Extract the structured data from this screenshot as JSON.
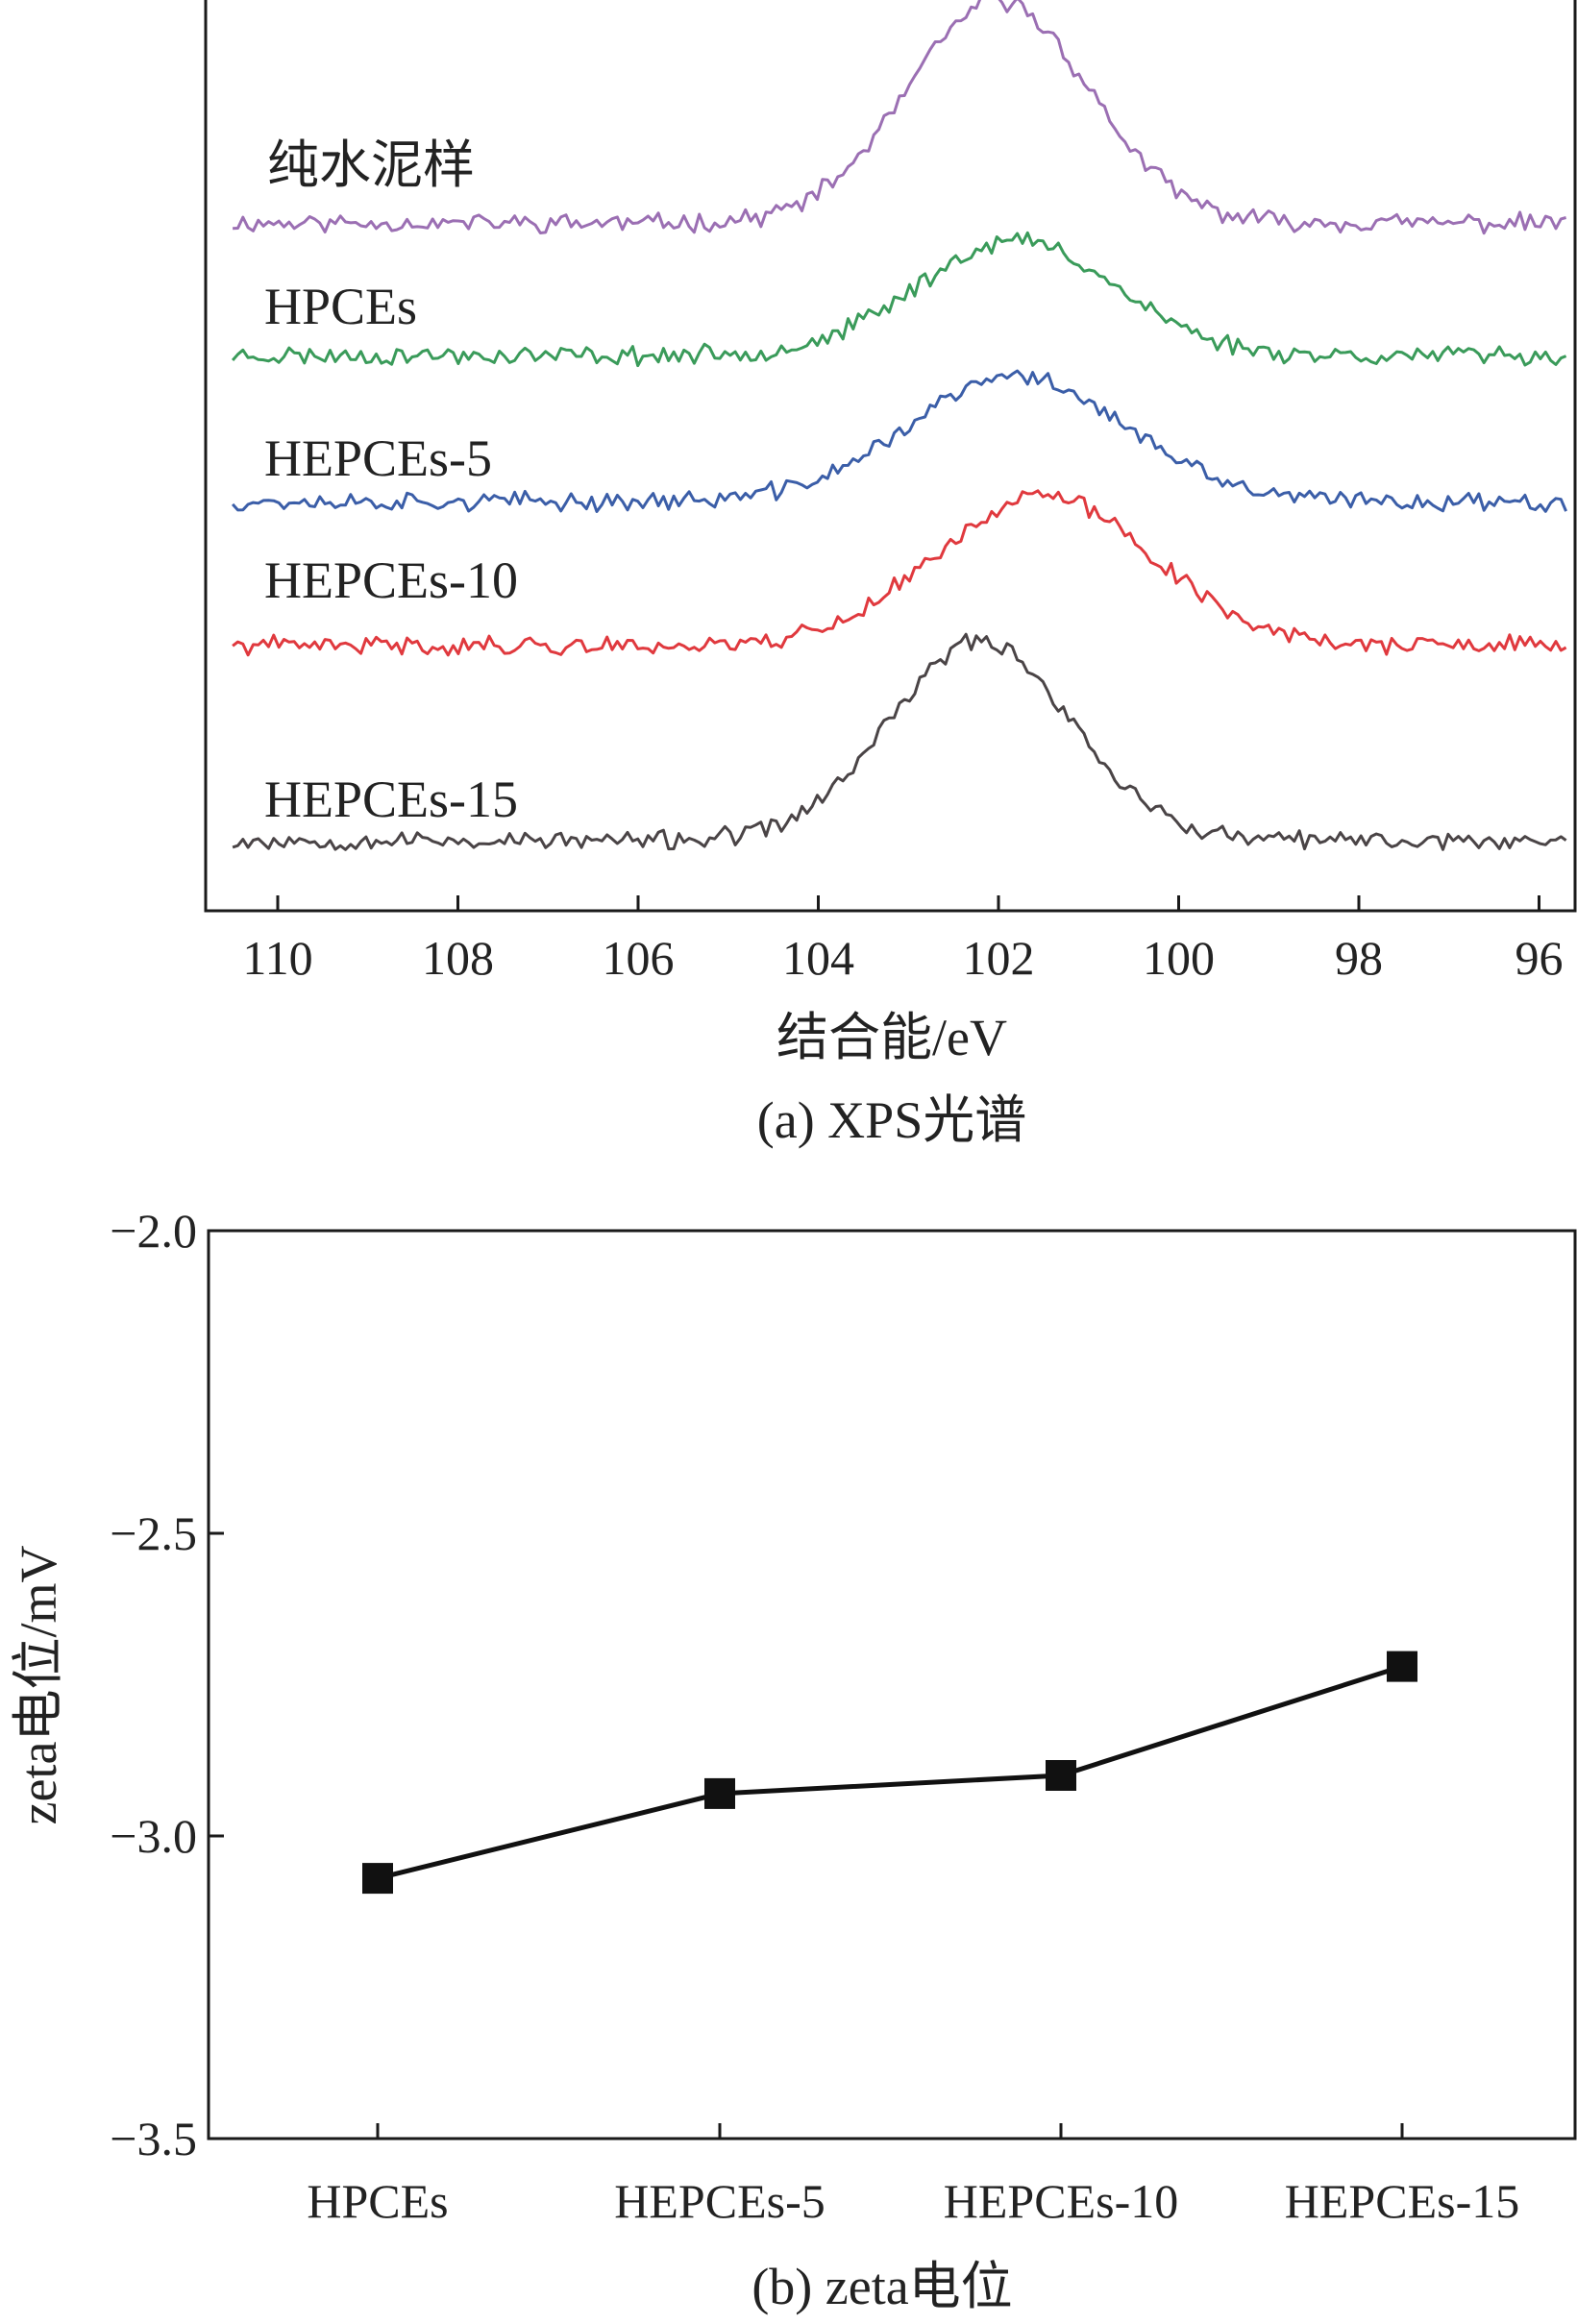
{
  "chart_data": [
    {
      "type": "line",
      "caption": "(a) XPS光谱",
      "xlabel": "结合能/eV",
      "ylabel": "",
      "xlim": [
        110.8,
        95.6
      ],
      "x_reversed": true,
      "xticks": [
        110,
        108,
        106,
        104,
        102,
        100,
        98,
        96
      ],
      "yticks": [],
      "grid": false,
      "legend": "labels above each curve",
      "series": [
        {
          "name": "纯水泥样",
          "color": "#9b6fb3",
          "peak_center": 102.0,
          "peak_width": 1.0,
          "peak_height": 11.0,
          "seed": 11
        },
        {
          "name": "HPCEs",
          "color": "#3a9b5a",
          "peak_center": 101.8,
          "peak_width": 1.1,
          "peak_height": 5.7,
          "seed": 23
        },
        {
          "name": "HEPCEs-5",
          "color": "#3b5ea8",
          "peak_center": 101.8,
          "peak_width": 1.2,
          "peak_height": 6.2,
          "seed": 37
        },
        {
          "name": "HEPCEs-10",
          "color": "#e0393e",
          "peak_center": 101.5,
          "peak_width": 1.2,
          "peak_height": 7.4,
          "seed": 41
        },
        {
          "name": "HEPCEs-15",
          "color": "#4a4446",
          "peak_center": 102.2,
          "peak_width": 1.0,
          "peak_height": 9.9,
          "seed": 53
        }
      ]
    },
    {
      "type": "line",
      "caption": "(b) zeta电位",
      "xlabel": "",
      "ylabel": "zeta电位/mV",
      "categories": [
        "HPCEs",
        "HEPCEs-5",
        "HEPCEs-10",
        "HEPCEs-15"
      ],
      "ylim": [
        -3.5,
        -2.0
      ],
      "yticks": [
        -2.0,
        -2.5,
        -3.0,
        -3.5
      ],
      "ytick_labels": [
        "−2.0",
        "−2.5",
        "−3.0",
        "−3.5"
      ],
      "grid": false,
      "marker": "square",
      "series": [
        {
          "name": "",
          "color": "#111111",
          "values": [
            -3.07,
            -2.93,
            -2.9,
            -2.72
          ]
        }
      ]
    }
  ]
}
